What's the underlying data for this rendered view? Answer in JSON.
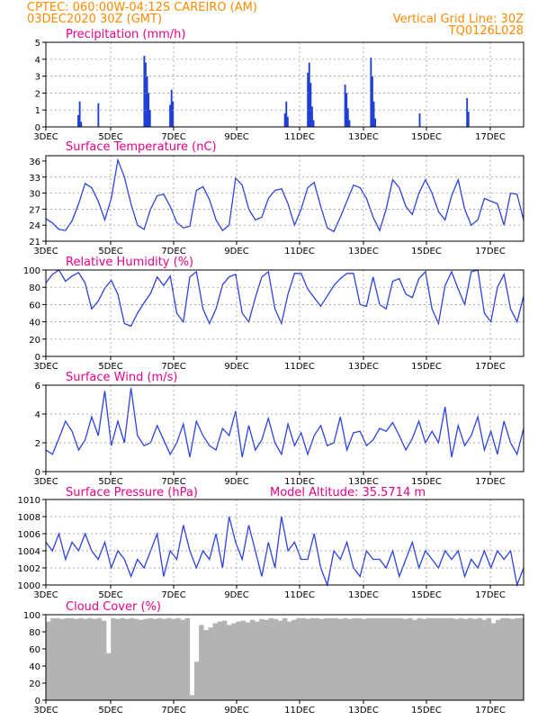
{
  "header": {
    "line1": "CPTEC:   060:00W-04:12S   CAREIRO (AM)",
    "line2": "03DEC2020  30Z (GMT)",
    "grid_note": "Vertical Grid Line: 30Z",
    "code": "TQ0126L028"
  },
  "x_ticks": [
    "3DEC",
    "5DEC",
    "7DEC",
    "9DEC",
    "11DEC",
    "13DEC",
    "15DEC",
    "17DEC"
  ],
  "colors": {
    "line": "#2c43e0",
    "bar": "#1f3fd6",
    "cloud": "#b3b3b3",
    "title": "#e8008a",
    "header": "#ff8a00"
  },
  "chart_data": [
    {
      "type": "bar",
      "title": "Precipitation (mm/h)",
      "ylim": [
        0,
        5
      ],
      "yticks": [
        0,
        1,
        2,
        3,
        4,
        5
      ],
      "values": [
        0,
        0,
        0,
        0,
        0,
        0,
        0,
        0,
        0,
        0,
        0,
        0,
        0,
        0,
        0,
        0,
        0,
        0,
        0,
        0,
        0,
        0,
        0.7,
        1.5,
        0.3,
        0,
        0,
        0,
        0,
        0,
        0,
        0,
        0,
        0,
        0,
        0,
        1.4,
        0,
        0,
        0,
        0,
        0,
        0,
        0,
        0,
        0,
        0,
        0,
        0,
        0,
        0,
        0,
        0,
        0,
        0,
        0,
        0,
        0,
        0,
        0,
        0,
        0,
        0,
        0,
        0,
        0,
        0,
        0,
        4.2,
        3.8,
        3.0,
        2.0,
        1.0,
        0,
        0,
        0,
        0,
        0,
        0,
        0,
        0,
        0,
        0,
        0,
        0,
        0,
        1.3,
        2.2,
        1.5,
        0,
        0,
        0,
        0,
        0,
        0,
        0,
        0,
        0,
        0,
        0,
        0,
        0,
        0,
        0,
        0,
        0,
        0,
        0,
        0,
        0,
        0,
        0,
        0,
        0,
        0,
        0,
        0,
        0,
        0,
        0,
        0,
        0,
        0,
        0,
        0,
        0,
        0,
        0,
        0,
        0,
        0,
        0,
        0,
        0,
        0,
        0,
        0,
        0,
        0,
        0,
        0,
        0,
        0,
        0,
        0,
        0,
        0,
        0,
        0,
        0,
        0,
        0,
        0,
        0,
        0,
        0,
        0,
        0,
        0,
        0,
        0,
        0,
        0,
        0,
        0,
        0,
        0.8,
        1.5,
        0.6,
        0,
        0,
        0,
        0,
        0,
        0,
        0,
        0,
        0,
        0,
        0,
        0,
        0,
        3.2,
        3.8,
        2.6,
        1.2,
        0.4,
        0,
        0,
        0,
        0,
        0,
        0,
        0,
        0,
        0,
        0,
        0,
        0,
        0,
        0,
        0,
        0,
        0,
        0,
        0,
        0,
        0,
        2.5,
        2.0,
        1.1,
        0.4,
        0,
        0,
        0,
        0,
        0,
        0,
        0,
        0,
        0,
        0,
        0,
        0,
        0,
        0,
        4.1,
        3.0,
        1.5,
        0.5,
        0,
        0,
        0,
        0,
        0,
        0,
        0,
        0,
        0,
        0,
        0,
        0,
        0,
        0,
        0,
        0,
        0,
        0,
        0,
        0,
        0,
        0,
        0,
        0,
        0,
        0,
        0,
        0,
        0,
        0,
        0.8,
        0,
        0,
        0,
        0,
        0,
        0,
        0,
        0,
        0,
        0,
        0,
        0,
        0,
        0,
        0,
        0,
        0,
        0,
        0,
        0,
        0,
        0,
        0,
        0,
        0,
        0,
        0,
        0,
        0,
        0,
        0,
        0,
        1.7,
        0.9,
        0,
        0,
        0,
        0,
        0,
        0,
        0,
        0,
        0,
        0,
        0,
        0,
        0,
        0,
        0,
        0,
        0,
        0,
        0,
        0,
        0,
        0,
        0,
        0,
        0,
        0,
        0,
        0,
        0,
        0,
        0,
        0,
        0,
        0,
        0,
        0,
        0,
        0
      ]
    },
    {
      "type": "line",
      "title": "Surface Temperature (nC)",
      "ylim": [
        21,
        37
      ],
      "yticks": [
        21,
        24,
        27,
        30,
        33,
        36
      ],
      "values": [
        25.2,
        24.4,
        23.2,
        23.0,
        24.8,
        28.0,
        31.8,
        31.0,
        28.5,
        25.0,
        29.0,
        36.2,
        33.0,
        28.0,
        24.0,
        23.2,
        27.0,
        29.5,
        29.8,
        27.5,
        24.5,
        23.5,
        23.8,
        30.5,
        31.2,
        28.8,
        25.0,
        23.0,
        24.0,
        32.8,
        31.5,
        27.0,
        25.0,
        25.5,
        29.0,
        30.5,
        30.8,
        28.0,
        24.0,
        27.0,
        31.0,
        32.0,
        27.5,
        23.5,
        22.8,
        25.5,
        28.5,
        31.5,
        31.0,
        29.0,
        25.5,
        23.0,
        27.0,
        32.5,
        31.0,
        27.5,
        26.0,
        30.0,
        32.5,
        30.0,
        26.5,
        25.0,
        29.5,
        32.5,
        27.0,
        24.0,
        25.0,
        29.0,
        28.5,
        28.0,
        24.0,
        30.0,
        29.8,
        25.0
      ],
      "segments": 73
    },
    {
      "type": "line",
      "title": "Relative Humidity (%)",
      "ylim": [
        0,
        100
      ],
      "yticks": [
        0,
        20,
        40,
        60,
        80,
        100
      ],
      "values": [
        85,
        95,
        100,
        87,
        93,
        97,
        85,
        55,
        64,
        79,
        88,
        72,
        38,
        35,
        50,
        62,
        73,
        92,
        82,
        93,
        50,
        40,
        92,
        98,
        55,
        38,
        55,
        83,
        92,
        95,
        50,
        40,
        68,
        92,
        98,
        55,
        38,
        72,
        96,
        96,
        78,
        68,
        58,
        70,
        82,
        90,
        96,
        96,
        60,
        58,
        92,
        60,
        55,
        87,
        90,
        72,
        68,
        90,
        98,
        55,
        38,
        82,
        98,
        78,
        60,
        98,
        100,
        50,
        40,
        80,
        95,
        55,
        40,
        70
      ],
      "segments": 73
    },
    {
      "type": "line",
      "title": "Surface Wind (m/s)",
      "ylim": [
        0,
        6
      ],
      "yticks": [
        0,
        2,
        4,
        6
      ],
      "values": [
        1.5,
        1.2,
        2.3,
        3.5,
        2.8,
        1.5,
        2.2,
        3.8,
        2.5,
        5.6,
        1.8,
        3.5,
        2.0,
        5.8,
        2.5,
        1.8,
        2.0,
        3.2,
        2.2,
        1.2,
        2.0,
        3.3,
        1.0,
        3.5,
        2.5,
        1.8,
        1.5,
        3.0,
        2.5,
        4.2,
        1.0,
        3.2,
        1.5,
        2.2,
        3.7,
        2.0,
        1.2,
        3.3,
        1.8,
        2.7,
        1.2,
        2.5,
        3.2,
        1.8,
        2.0,
        3.8,
        1.5,
        2.7,
        2.8,
        1.8,
        2.2,
        3.0,
        2.8,
        3.4,
        2.5,
        1.5,
        2.3,
        3.5,
        2.0,
        2.8,
        2.0,
        4.5,
        1.0,
        3.2,
        1.8,
        2.5,
        3.8,
        1.5,
        2.8,
        1.2,
        3.5,
        2.0,
        1.2,
        3.0
      ],
      "segments": 73
    },
    {
      "type": "line",
      "title": "Surface Pressure (hPa)",
      "note": "Model Altitude: 35.5714 m",
      "ylim": [
        1000,
        1010
      ],
      "yticks": [
        1000,
        1002,
        1004,
        1006,
        1008,
        1010
      ],
      "values": [
        1005,
        1004,
        1006,
        1003,
        1005,
        1004,
        1006,
        1004,
        1003,
        1005,
        1002,
        1004,
        1003,
        1001,
        1003,
        1002,
        1004,
        1006,
        1001,
        1004,
        1003,
        1007,
        1004,
        1002,
        1004,
        1003,
        1006,
        1002,
        1008,
        1005,
        1003,
        1007,
        1004,
        1001,
        1005,
        1002,
        1008,
        1004,
        1005,
        1003,
        1003,
        1006,
        1002,
        1000,
        1004,
        1003,
        1005,
        1002,
        1001,
        1004,
        1003,
        1003,
        1002,
        1004,
        1001,
        1003,
        1005,
        1002,
        1004,
        1003,
        1002,
        1004,
        1003,
        1004,
        1001,
        1003,
        1002,
        1004,
        1002,
        1004,
        1003,
        1004,
        1000,
        1002
      ],
      "segments": 73
    },
    {
      "type": "bar",
      "title": "Cloud Cover (%)",
      "ylim": [
        0,
        100
      ],
      "yticks": [
        0,
        20,
        40,
        60,
        80,
        100
      ],
      "values": [
        92,
        96,
        96,
        95,
        96,
        96,
        95,
        96,
        95,
        96,
        95,
        96,
        93,
        55,
        96,
        95,
        96,
        95,
        96,
        95,
        94,
        95,
        96,
        95,
        96,
        95,
        96,
        95,
        96,
        94,
        96,
        6,
        45,
        88,
        82,
        85,
        90,
        92,
        93,
        88,
        90,
        92,
        93,
        91,
        94,
        92,
        95,
        94,
        96,
        95,
        93,
        96,
        92,
        94,
        96,
        96,
        95,
        96,
        96,
        95,
        96,
        96,
        96,
        95,
        96,
        95,
        96,
        96,
        95,
        96,
        96,
        96,
        96,
        96,
        96,
        96,
        96,
        95,
        96,
        94,
        96,
        95,
        96,
        96,
        96,
        96,
        96,
        96,
        95,
        96,
        95,
        96,
        95,
        96,
        94,
        96,
        90,
        94,
        96,
        96,
        95,
        96,
        96
      ]
    }
  ]
}
